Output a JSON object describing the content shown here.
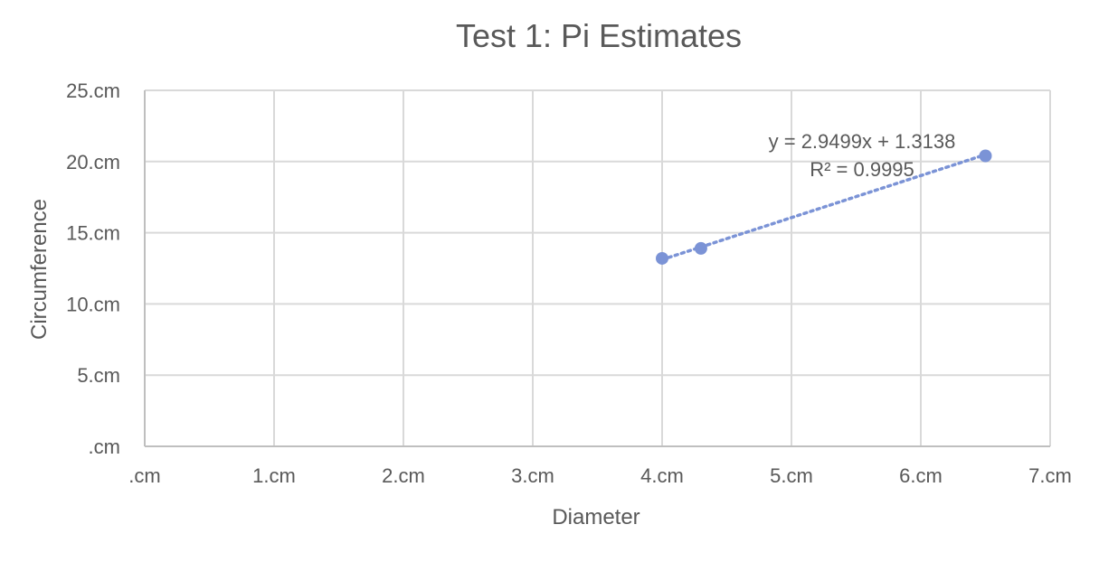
{
  "chart_data": {
    "type": "scatter",
    "title": "Test 1: Pi Estimates",
    "xlabel": "Diameter",
    "ylabel": "Circumference",
    "xlim": [
      0,
      7
    ],
    "ylim": [
      0,
      25
    ],
    "x_ticks": [
      0,
      1,
      2,
      3,
      4,
      5,
      6,
      7
    ],
    "y_ticks": [
      0,
      5,
      10,
      15,
      20,
      25
    ],
    "x_tick_labels": [
      ".cm",
      "1.cm",
      "2.cm",
      "3.cm",
      "4.cm",
      "5.cm",
      "6.cm",
      "7.cm"
    ],
    "y_tick_labels": [
      ".cm",
      "5.cm",
      "10.cm",
      "15.cm",
      "20.cm",
      "25.cm"
    ],
    "grid": true,
    "legend": "none",
    "series": [
      {
        "x": [
          4.0,
          4.3,
          6.5
        ],
        "y": [
          13.2,
          13.9,
          20.4
        ],
        "color": "#7b93d6"
      }
    ],
    "trendline": {
      "type": "linear",
      "style": "dotted",
      "slope": 2.9499,
      "intercept": 1.3138,
      "x_range": [
        4.0,
        6.5
      ],
      "color": "#7b93d6",
      "equation_label": "y = 2.9499x + 1.3138",
      "r2_label": "R² = 0.9995"
    },
    "colors": {
      "grid": "#d9d9d9",
      "axis": "#bfbfbf",
      "text": "#595959"
    }
  }
}
